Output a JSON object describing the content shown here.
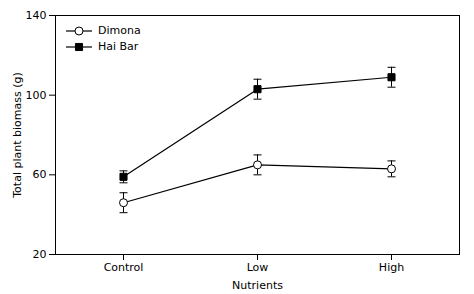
{
  "chart_data": {
    "type": "line",
    "categories": [
      "Control",
      "Low",
      "High"
    ],
    "xlabel": "Nutrients",
    "ylabel": "Total plant biomass (g)",
    "ylim": [
      20,
      140
    ],
    "yticks": [
      20,
      60,
      100,
      140
    ],
    "legend": "upper left",
    "series": [
      {
        "name": "Dimona",
        "color": "#000000",
        "marker": "circle",
        "values": [
          46,
          65,
          63
        ],
        "errors": [
          5,
          5,
          4
        ]
      },
      {
        "name": "Hai Bar",
        "color": "#000000",
        "marker": "square",
        "values": [
          59,
          103,
          109
        ],
        "errors": [
          3,
          5,
          5
        ]
      }
    ]
  }
}
